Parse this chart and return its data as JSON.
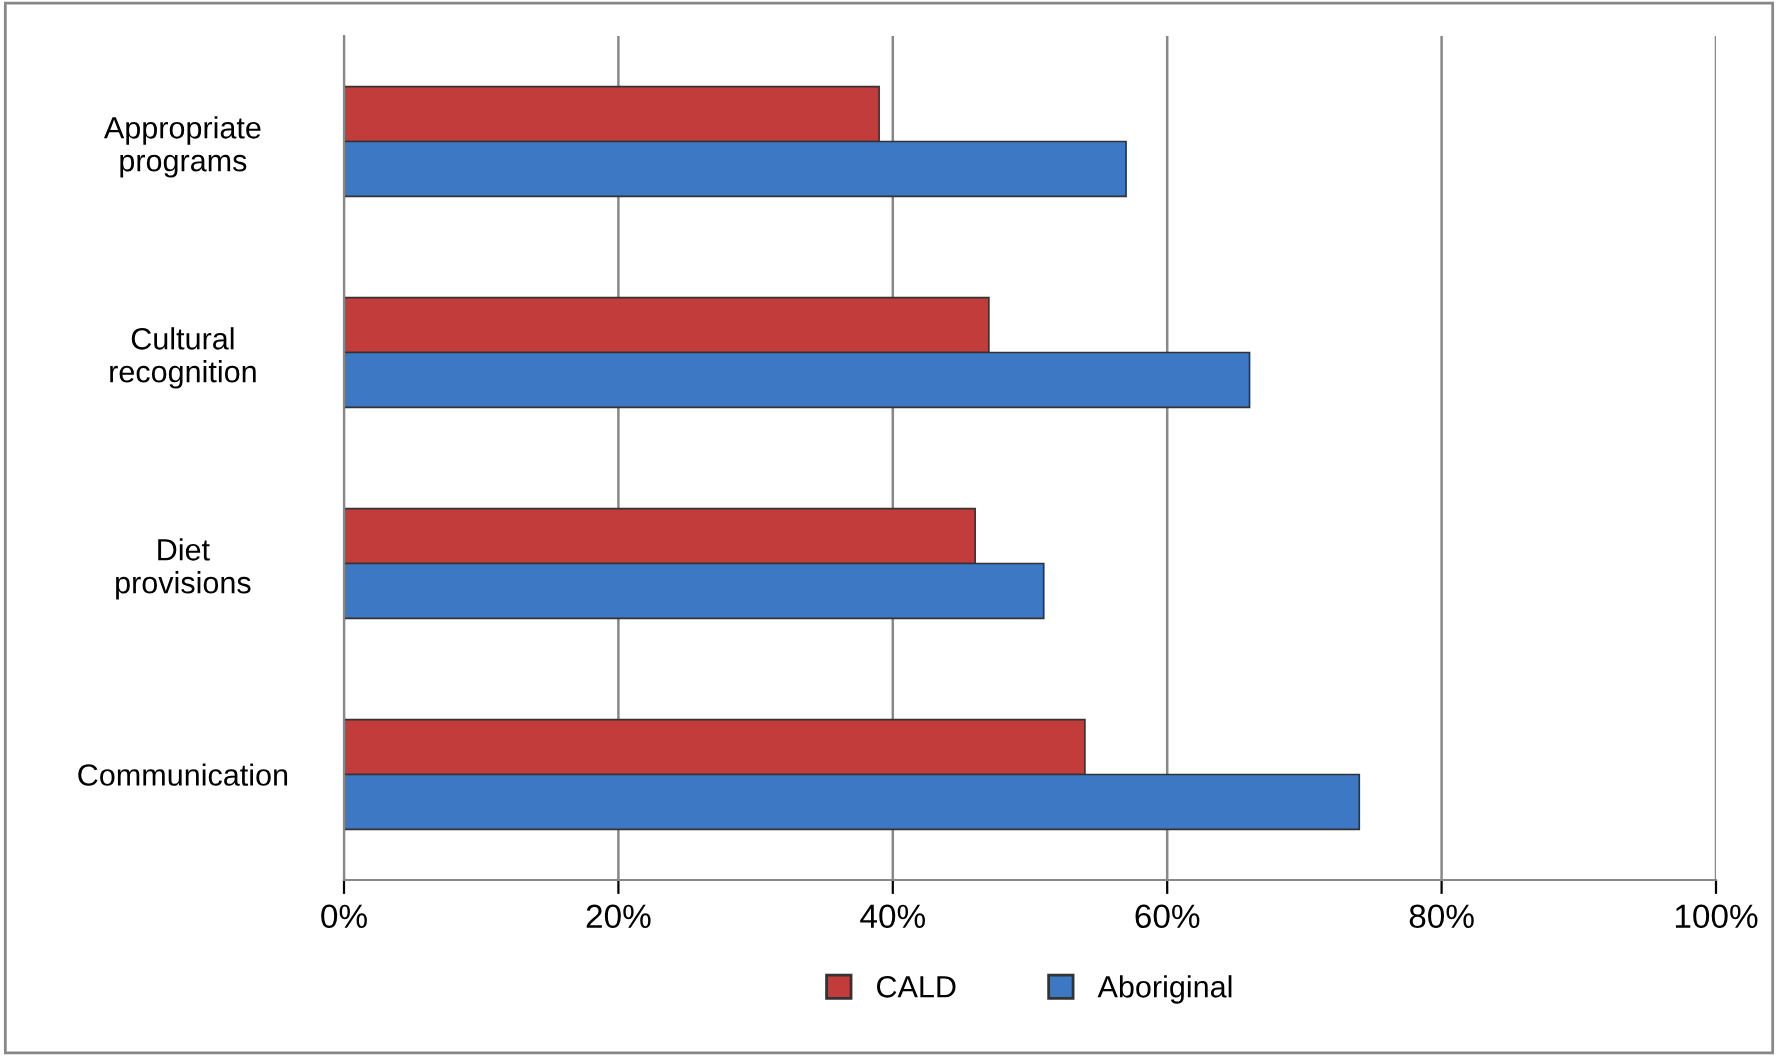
{
  "chart_data": {
    "type": "bar",
    "orientation": "horizontal",
    "categories": [
      "Appropriate\nprograms",
      "Cultural\nrecognition",
      "Diet\nprovisions",
      "Communication"
    ],
    "series": [
      {
        "name": "CALD",
        "color": "#c33c3c",
        "values": [
          39,
          47,
          46,
          54
        ]
      },
      {
        "name": "Aboriginal",
        "color": "#3c78c4",
        "values": [
          57,
          66,
          51,
          74
        ]
      }
    ],
    "xlim": [
      0,
      100
    ],
    "xticks": [
      {
        "value": 0,
        "label": "0%"
      },
      {
        "value": 20,
        "label": "20%"
      },
      {
        "value": 40,
        "label": "40%"
      },
      {
        "value": 60,
        "label": "60%"
      },
      {
        "value": 80,
        "label": "80%"
      },
      {
        "value": 100,
        "label": "100%"
      }
    ],
    "grid": "x",
    "legend": "bottom"
  }
}
